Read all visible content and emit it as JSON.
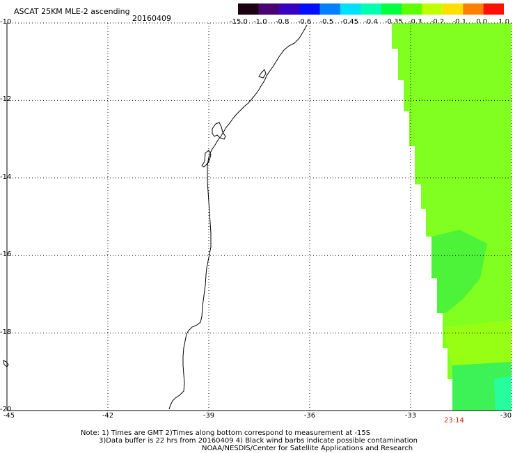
{
  "header": {
    "title": "ASCAT 25KM MLE-2 ascending",
    "date": "20160409"
  },
  "colorbar": {
    "labels": [
      "-15.0",
      "-1.0",
      "-0.8",
      "-0.6",
      "-0.5",
      "-0.45",
      "-0.4",
      "-0.35",
      "-0.3",
      "-0.2",
      "-0.1",
      "0.0",
      "1.0"
    ],
    "colors": [
      "#1a0010",
      "#4a0070",
      "#3a00c0",
      "#0010ff",
      "#0080ff",
      "#00e0ff",
      "#00ffb0",
      "#00ff40",
      "#60ff00",
      "#c0ff00",
      "#ffe000",
      "#ff8000",
      "#ff1000"
    ]
  },
  "map": {
    "lat_labels": [
      "-10",
      "-12",
      "-14",
      "-16",
      "-18",
      "-20"
    ],
    "lon_labels": [
      "-45",
      "-42",
      "-39",
      "-36",
      "-33",
      "-30"
    ],
    "lat_range": [
      -20,
      -10
    ],
    "lon_range": [
      -45,
      -30
    ],
    "grid": "dotted",
    "pass_time": "23:14",
    "pass_time_color": "#cc2200",
    "swath_color": "#80ff20"
  },
  "notes": {
    "line1": "Note: 1) Times are GMT 2)Times along bottom correspond to measurement at -15S",
    "line2": "3)Data buffer is 22 hrs from 20160409 4) Black wind barbs indicate possible contamination",
    "line3": "NOAA/NESDIS/Center for Satellite Applications and Research"
  }
}
